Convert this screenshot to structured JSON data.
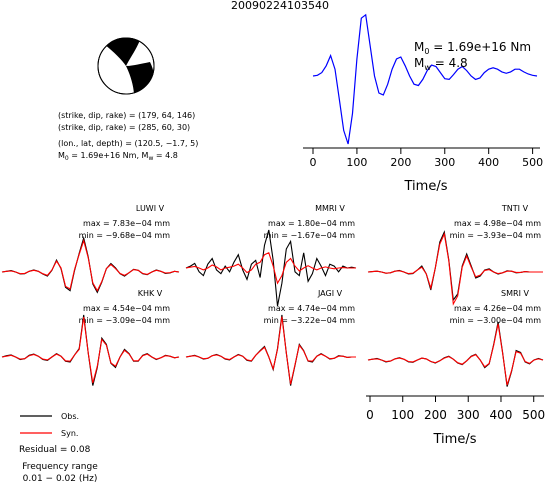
{
  "event_id": "20090224103540",
  "mechanism": {
    "line1": "(strike, dip, rake) = (179, 64, 146)",
    "line2": "(strike, dip, rake) = (285, 60, 30)",
    "line3": "(lon., lat, depth) = (120.5, −1.7, 5)",
    "line4_m0_prefix": "M",
    "line4_m0_sub": "0",
    "line4_m0_val": " = 1.69e+16 Nm, M",
    "line4_mw_sub": "w",
    "line4_mw_val": " = 4.8"
  },
  "stf": {
    "m0_prefix": "M",
    "m0_sub": "0",
    "m0_value": " = 1.69e+16 Nm",
    "mw_prefix": "M",
    "mw_sub": "w",
    "mw_value": " = 4.8"
  },
  "legend": {
    "obs": "Obs.",
    "syn": "Syn.",
    "residual": "Residual = 0.08",
    "freq_title": "Frequency range",
    "freq_value": "0.01 − 0.02 (Hz)"
  },
  "stations": [
    {
      "name": "LUWI V",
      "max": "max = 7.83e−04 mm",
      "min": "min = −9.68e−04 mm"
    },
    {
      "name": "MMRI V",
      "max": "max = 1.80e−04 mm",
      "min": "min = −1.67e−04 mm"
    },
    {
      "name": "TNTI V",
      "max": "max = 4.98e−04 mm",
      "min": "min = −3.93e−04 mm"
    },
    {
      "name": "KHK V",
      "max": "max = 4.54e−04 mm",
      "min": "min = −3.09e−04 mm"
    },
    {
      "name": "JAGI V",
      "max": "max = 4.74e−04 mm",
      "min": "min = −3.22e−04 mm"
    },
    {
      "name": "SMRI V",
      "max": "max = 4.26e−04 mm",
      "min": "min = −3.00e−04 mm"
    }
  ],
  "colors": {
    "obs": "#000000",
    "syn": "#ff0000",
    "stf": "#0000ff"
  },
  "chart_data": [
    {
      "type": "line",
      "xlabel": "Time/s",
      "xlim": [
        0,
        510
      ],
      "xticks": [
        0,
        100,
        200,
        300,
        400,
        500
      ],
      "series": [
        {
          "x": [
            0,
            10,
            20,
            30,
            40,
            50,
            60,
            70,
            80,
            90,
            100,
            110,
            120,
            130,
            140,
            150,
            160,
            170,
            180,
            190,
            200,
            210,
            220,
            230,
            240,
            250,
            260,
            270,
            280,
            290,
            300,
            310,
            320,
            330,
            340,
            350,
            360,
            370,
            380,
            390,
            400,
            410,
            420,
            430,
            440,
            450,
            460,
            470,
            480,
            490,
            500,
            510
          ],
          "y": [
            0.0,
            0.01,
            0.05,
            0.15,
            0.3,
            0.1,
            -0.35,
            -0.8,
            -1.0,
            -0.55,
            0.25,
            0.85,
            0.9,
            0.45,
            0.0,
            -0.25,
            -0.28,
            -0.12,
            0.1,
            0.25,
            0.28,
            0.15,
            0.0,
            -0.12,
            -0.14,
            -0.05,
            0.08,
            0.16,
            0.14,
            0.05,
            -0.04,
            -0.05,
            0.02,
            0.1,
            0.14,
            0.08,
            0.0,
            -0.05,
            -0.03,
            0.05,
            0.1,
            0.12,
            0.1,
            0.06,
            0.04,
            0.06,
            0.1,
            0.1,
            0.06,
            0.03,
            0.01,
            0.0
          ]
        }
      ]
    },
    {
      "type": "line",
      "station": "LUWI V",
      "series": [
        {
          "name": "Obs.",
          "y": [
            0.0,
            0.02,
            0.04,
            0.0,
            -0.06,
            -0.05,
            0.02,
            0.06,
            0.02,
            -0.06,
            -0.12,
            0.05,
            0.35,
            0.1,
            -0.45,
            -0.55,
            0.05,
            0.55,
            1.0,
            0.45,
            -0.35,
            -0.6,
            -0.3,
            0.1,
            0.25,
            0.12,
            -0.05,
            -0.12,
            -0.02,
            0.08,
            0.05,
            -0.05,
            -0.08,
            0.0,
            0.06,
            0.02,
            -0.04,
            -0.03,
            0.02,
            0.0
          ]
        },
        {
          "name": "Syn.",
          "y": [
            0.0,
            0.02,
            0.03,
            0.0,
            -0.05,
            -0.04,
            0.02,
            0.05,
            0.02,
            -0.05,
            -0.1,
            0.06,
            0.32,
            0.12,
            -0.42,
            -0.5,
            0.08,
            0.52,
            0.92,
            0.42,
            -0.32,
            -0.55,
            -0.28,
            0.1,
            0.22,
            0.1,
            -0.04,
            -0.1,
            -0.02,
            0.07,
            0.05,
            -0.04,
            -0.07,
            0.0,
            0.05,
            0.02,
            -0.03,
            -0.02,
            0.02,
            0.0
          ]
        }
      ]
    },
    {
      "type": "line",
      "station": "MMRI V",
      "series": [
        {
          "name": "Obs.",
          "y": [
            0.0,
            0.05,
            0.12,
            -0.1,
            -0.2,
            0.1,
            0.25,
            -0.05,
            -0.15,
            0.05,
            -0.1,
            0.15,
            0.35,
            -0.05,
            -0.3,
            0.1,
            0.2,
            -0.25,
            0.6,
            1.0,
            0.2,
            -1.0,
            -0.4,
            0.5,
            0.7,
            -0.1,
            -0.2,
            0.4,
            -0.35,
            -0.15,
            0.25,
            0.05,
            -0.2,
            0.1,
            0.05,
            -0.1,
            0.05,
            0.0,
            0.02,
            0.0
          ]
        },
        {
          "name": "Syn.",
          "y": [
            0.0,
            0.02,
            0.04,
            0.0,
            -0.05,
            0.0,
            0.08,
            0.03,
            -0.05,
            0.0,
            0.02,
            0.05,
            0.1,
            0.0,
            -0.12,
            -0.05,
            0.1,
            0.15,
            0.35,
            0.4,
            0.05,
            -0.4,
            -0.2,
            0.15,
            0.25,
            0.05,
            -0.08,
            0.0,
            0.06,
            0.0,
            -0.05,
            0.0,
            0.03,
            0.0,
            -0.02,
            0.0,
            0.01,
            0.0,
            0.0,
            0.0
          ]
        }
      ]
    },
    {
      "type": "line",
      "station": "TNTI V",
      "series": [
        {
          "name": "Obs.",
          "y": [
            0.0,
            0.01,
            0.02,
            0.0,
            -0.03,
            -0.02,
            0.02,
            0.04,
            0.0,
            -0.05,
            -0.04,
            0.05,
            0.15,
            -0.05,
            -0.45,
            0.1,
            0.75,
            1.0,
            0.3,
            -0.7,
            -0.55,
            0.15,
            0.45,
            0.15,
            -0.15,
            -0.1,
            0.05,
            0.08,
            0.0,
            -0.05,
            -0.02,
            0.03,
            0.02,
            -0.02,
            -0.01,
            0.01,
            0.0,
            0.0,
            0.0,
            0.0
          ]
        },
        {
          "name": "Syn.",
          "y": [
            0.0,
            0.01,
            0.02,
            0.0,
            -0.03,
            -0.02,
            0.02,
            0.03,
            0.0,
            -0.04,
            -0.03,
            0.05,
            0.12,
            -0.05,
            -0.4,
            0.1,
            0.7,
            0.95,
            0.28,
            -0.8,
            -0.6,
            0.12,
            0.4,
            0.12,
            -0.12,
            -0.08,
            0.04,
            0.06,
            0.0,
            -0.04,
            -0.02,
            0.02,
            0.02,
            -0.01,
            -0.01,
            0.01,
            0.0,
            0.0,
            0.0,
            0.0
          ]
        }
      ]
    },
    {
      "type": "line",
      "station": "KHK V",
      "series": [
        {
          "name": "Obs.",
          "y": [
            0.0,
            0.03,
            0.05,
            0.0,
            -0.06,
            -0.04,
            0.04,
            0.07,
            0.02,
            -0.06,
            -0.08,
            0.0,
            0.08,
            0.02,
            -0.1,
            -0.12,
            0.05,
            0.2,
            1.0,
            0.1,
            -0.68,
            -0.25,
            0.45,
            0.3,
            -0.15,
            -0.25,
            0.0,
            0.18,
            0.08,
            -0.1,
            -0.1,
            0.04,
            0.08,
            0.0,
            -0.06,
            -0.02,
            0.04,
            0.02,
            -0.02,
            0.0
          ]
        },
        {
          "name": "Syn.",
          "y": [
            0.0,
            0.02,
            0.04,
            0.0,
            -0.05,
            -0.04,
            0.03,
            0.06,
            0.02,
            -0.05,
            -0.07,
            0.0,
            0.07,
            0.02,
            -0.09,
            -0.1,
            0.05,
            0.18,
            0.95,
            0.1,
            -0.62,
            -0.22,
            0.42,
            0.28,
            -0.14,
            -0.22,
            0.0,
            0.16,
            0.07,
            -0.09,
            -0.09,
            0.03,
            0.07,
            0.0,
            -0.05,
            -0.02,
            0.03,
            0.02,
            -0.02,
            0.0
          ]
        }
      ]
    },
    {
      "type": "line",
      "station": "JAGI V",
      "series": [
        {
          "name": "Obs.",
          "y": [
            0.0,
            0.02,
            0.04,
            0.0,
            -0.05,
            -0.03,
            0.03,
            0.06,
            0.02,
            -0.05,
            -0.07,
            0.0,
            0.06,
            0.02,
            -0.08,
            -0.1,
            0.04,
            0.15,
            0.25,
            0.0,
            -0.3,
            0.2,
            1.0,
            0.1,
            -0.68,
            -0.2,
            0.3,
            0.15,
            -0.1,
            -0.12,
            0.02,
            0.08,
            0.02,
            -0.05,
            -0.03,
            0.03,
            0.02,
            -0.01,
            0.0,
            0.0
          ]
        },
        {
          "name": "Syn.",
          "y": [
            0.0,
            0.02,
            0.03,
            0.0,
            -0.04,
            -0.03,
            0.03,
            0.05,
            0.02,
            -0.04,
            -0.06,
            0.0,
            0.05,
            0.02,
            -0.07,
            -0.09,
            0.04,
            0.14,
            0.23,
            0.0,
            -0.28,
            0.18,
            0.96,
            0.1,
            -0.65,
            -0.18,
            0.28,
            0.14,
            -0.09,
            -0.1,
            0.02,
            0.07,
            0.02,
            -0.04,
            -0.03,
            0.02,
            0.02,
            -0.01,
            0.0,
            0.0
          ]
        }
      ]
    },
    {
      "type": "line",
      "station": "SMRI V",
      "xlabel": "Time/s",
      "xlim": [
        0,
        510
      ],
      "xticks": [
        0,
        100,
        200,
        300,
        400,
        500
      ],
      "series": [
        {
          "name": "Obs.",
          "y": [
            0.0,
            0.02,
            0.04,
            0.0,
            -0.05,
            -0.03,
            0.03,
            0.06,
            0.02,
            -0.05,
            -0.06,
            0.0,
            0.05,
            0.03,
            -0.04,
            -0.08,
            -0.02,
            0.06,
            0.1,
            0.02,
            -0.08,
            -0.12,
            -0.02,
            0.1,
            0.15,
            0.0,
            -0.2,
            -0.1,
            0.4,
            1.0,
            0.2,
            -0.7,
            -0.3,
            0.25,
            0.2,
            -0.05,
            -0.1,
            0.0,
            0.04,
            0.0
          ]
        },
        {
          "name": "Syn.",
          "y": [
            0.0,
            0.02,
            0.03,
            0.0,
            -0.04,
            -0.03,
            0.03,
            0.05,
            0.02,
            -0.04,
            -0.05,
            0.0,
            0.05,
            0.03,
            -0.04,
            -0.07,
            -0.02,
            0.05,
            0.09,
            0.02,
            -0.07,
            -0.11,
            -0.02,
            0.09,
            0.14,
            0.0,
            -0.18,
            -0.09,
            0.38,
            0.95,
            0.18,
            -0.66,
            -0.28,
            0.22,
            0.18,
            -0.04,
            -0.09,
            0.0,
            0.03,
            0.0
          ]
        }
      ]
    }
  ]
}
